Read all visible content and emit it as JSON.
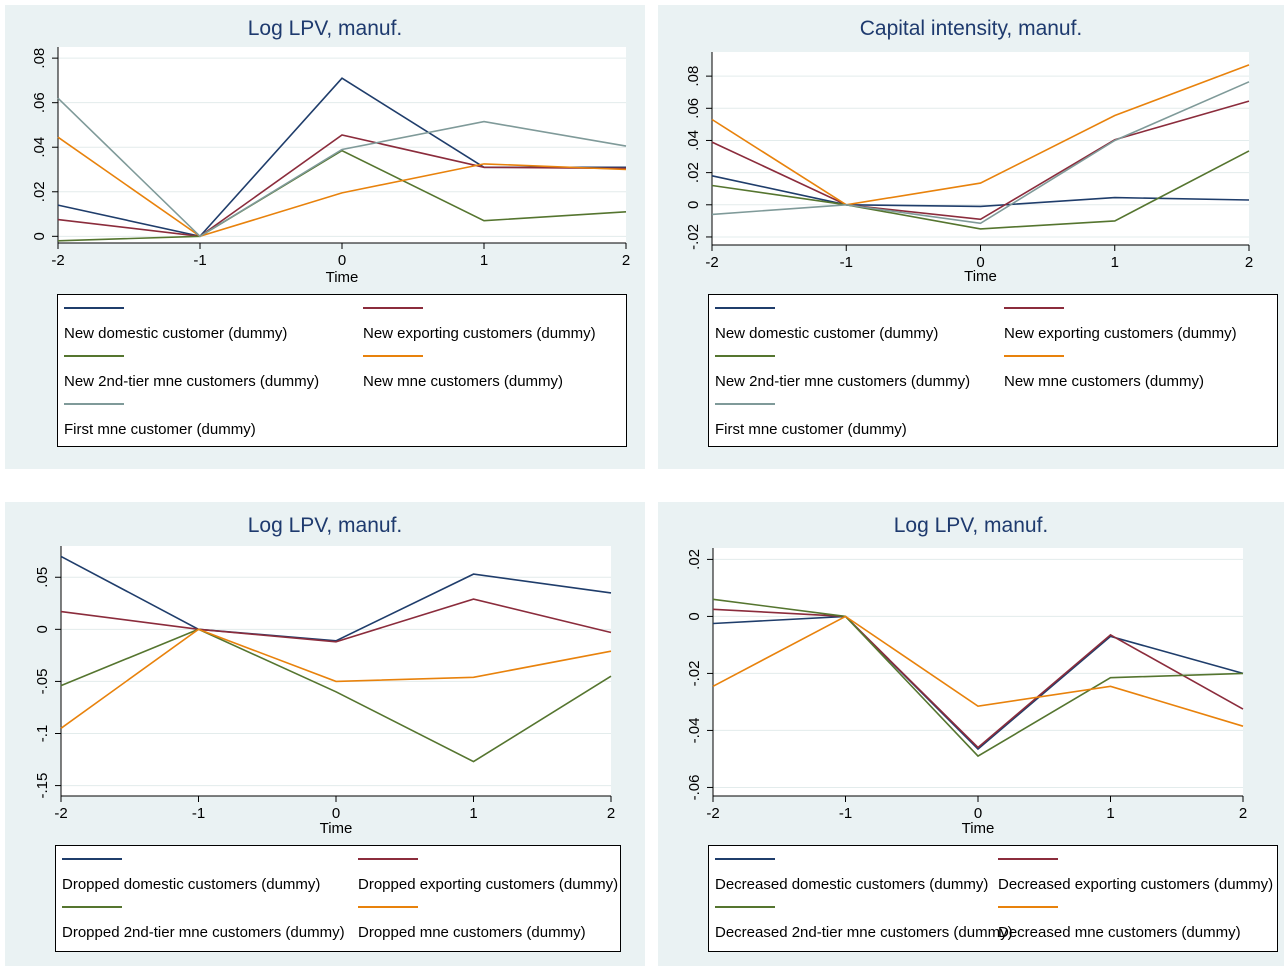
{
  "chart_data": [
    {
      "type": "line",
      "title": "Log LPV, manuf.",
      "xlabel": "Time",
      "ylabel": "",
      "x": [
        -2,
        -1,
        0,
        1,
        2
      ],
      "xticks": [
        "-2",
        "-1",
        "0",
        "1",
        "2"
      ],
      "ylim": [
        -0.003,
        0.085
      ],
      "yticks": [
        0,
        0.02,
        0.04,
        0.06,
        0.08
      ],
      "ytick_labels": [
        "0",
        ".02",
        ".04",
        ".06",
        ".08"
      ],
      "grid": true,
      "legend_position": "bottom",
      "series": [
        {
          "name": "New domestic customer (dummy)",
          "color": "#1f3d6b",
          "values": [
            0.014,
            0,
            0.071,
            0.031,
            0.031
          ]
        },
        {
          "name": "New exporting customers (dummy)",
          "color": "#8b2c3c",
          "values": [
            0.0075,
            0,
            0.0455,
            0.031,
            0.0305
          ]
        },
        {
          "name": "New 2nd-tier mne customers (dummy)",
          "color": "#55752f",
          "values": [
            -0.002,
            0,
            0.0385,
            0.007,
            0.011
          ]
        },
        {
          "name": "New mne customers (dummy)",
          "color": "#e8820c",
          "values": [
            0.0445,
            0,
            0.0195,
            0.0325,
            0.03
          ]
        },
        {
          "name": "First mne customer (dummy)",
          "color": "#7f9a99",
          "values": [
            0.062,
            0,
            0.039,
            0.0515,
            0.0405
          ]
        }
      ]
    },
    {
      "type": "line",
      "title": "Capital intensity, manuf.",
      "xlabel": "Time",
      "ylabel": "",
      "x": [
        -2,
        -1,
        0,
        1,
        2
      ],
      "xticks": [
        "-2",
        "-1",
        "0",
        "1",
        "2"
      ],
      "ylim": [
        -0.025,
        0.095
      ],
      "yticks": [
        -0.02,
        0,
        0.02,
        0.04,
        0.06,
        0.08
      ],
      "ytick_labels": [
        "-.02",
        "0",
        ".02",
        ".04",
        ".06",
        ".08"
      ],
      "grid": true,
      "legend_position": "bottom",
      "series": [
        {
          "name": "New domestic customer (dummy)",
          "color": "#1f3d6b",
          "values": [
            0.018,
            0,
            -0.001,
            0.0045,
            0.003
          ]
        },
        {
          "name": "New exporting customers (dummy)",
          "color": "#8b2c3c",
          "values": [
            0.039,
            0,
            -0.009,
            0.0405,
            0.0645
          ]
        },
        {
          "name": "New 2nd-tier mne customers (dummy)",
          "color": "#55752f",
          "values": [
            0.012,
            0,
            -0.015,
            -0.01,
            0.0335
          ]
        },
        {
          "name": "New mne customers (dummy)",
          "color": "#e8820c",
          "values": [
            0.053,
            0,
            0.0135,
            0.0555,
            0.087
          ]
        },
        {
          "name": "First mne customer (dummy)",
          "color": "#7f9a99",
          "values": [
            -0.006,
            0,
            -0.0115,
            0.04,
            0.0765
          ]
        }
      ]
    },
    {
      "type": "line",
      "title": "Log LPV, manuf.",
      "xlabel": "Time",
      "ylabel": "",
      "x": [
        -2,
        -1,
        0,
        1,
        2
      ],
      "xticks": [
        "-2",
        "-1",
        "0",
        "1",
        "2"
      ],
      "ylim": [
        -0.16,
        0.08
      ],
      "yticks": [
        -0.15,
        -0.1,
        -0.05,
        0,
        0.05
      ],
      "ytick_labels": [
        "-.15",
        "-.1",
        "-.05",
        "0",
        ".05"
      ],
      "grid": true,
      "legend_position": "bottom",
      "series": [
        {
          "name": "Dropped domestic customers (dummy)",
          "color": "#1f3d6b",
          "values": [
            0.07,
            0,
            -0.011,
            0.053,
            0.035
          ]
        },
        {
          "name": "Dropped exporting customers (dummy)",
          "color": "#8b2c3c",
          "values": [
            0.017,
            0,
            -0.012,
            0.029,
            -0.003
          ]
        },
        {
          "name": "Dropped 2nd-tier mne customers (dummy)",
          "color": "#55752f",
          "values": [
            -0.054,
            0,
            -0.06,
            -0.127,
            -0.045
          ]
        },
        {
          "name": "Dropped mne customers (dummy)",
          "color": "#e8820c",
          "values": [
            -0.095,
            0,
            -0.05,
            -0.046,
            -0.021
          ]
        }
      ]
    },
    {
      "type": "line",
      "title": "Log LPV, manuf.",
      "xlabel": "Time",
      "ylabel": "",
      "x": [
        -2,
        -1,
        0,
        1,
        2
      ],
      "xticks": [
        "-2",
        "-1",
        "0",
        "1",
        "2"
      ],
      "ylim": [
        -0.063,
        0.024
      ],
      "yticks": [
        -0.06,
        -0.04,
        -0.02,
        0,
        0.02
      ],
      "ytick_labels": [
        "-.06",
        "-.04",
        "-.02",
        "0",
        ".02"
      ],
      "grid": true,
      "legend_position": "bottom",
      "series": [
        {
          "name": "Decreased domestic customers (dummy)",
          "color": "#1f3d6b",
          "values": [
            -0.0025,
            0,
            -0.0465,
            -0.007,
            -0.02
          ]
        },
        {
          "name": "Decreased exporting customers (dummy)",
          "color": "#8b2c3c",
          "values": [
            0.0025,
            0,
            -0.046,
            -0.0065,
            -0.0325
          ]
        },
        {
          "name": "Decreased 2nd-tier mne customers (dummy)",
          "color": "#55752f",
          "values": [
            0.006,
            0,
            -0.049,
            -0.0215,
            -0.02
          ]
        },
        {
          "name": "Decreased mne customers (dummy)",
          "color": "#e8820c",
          "values": [
            -0.0245,
            0,
            -0.0315,
            -0.0245,
            -0.0385
          ]
        }
      ]
    }
  ]
}
